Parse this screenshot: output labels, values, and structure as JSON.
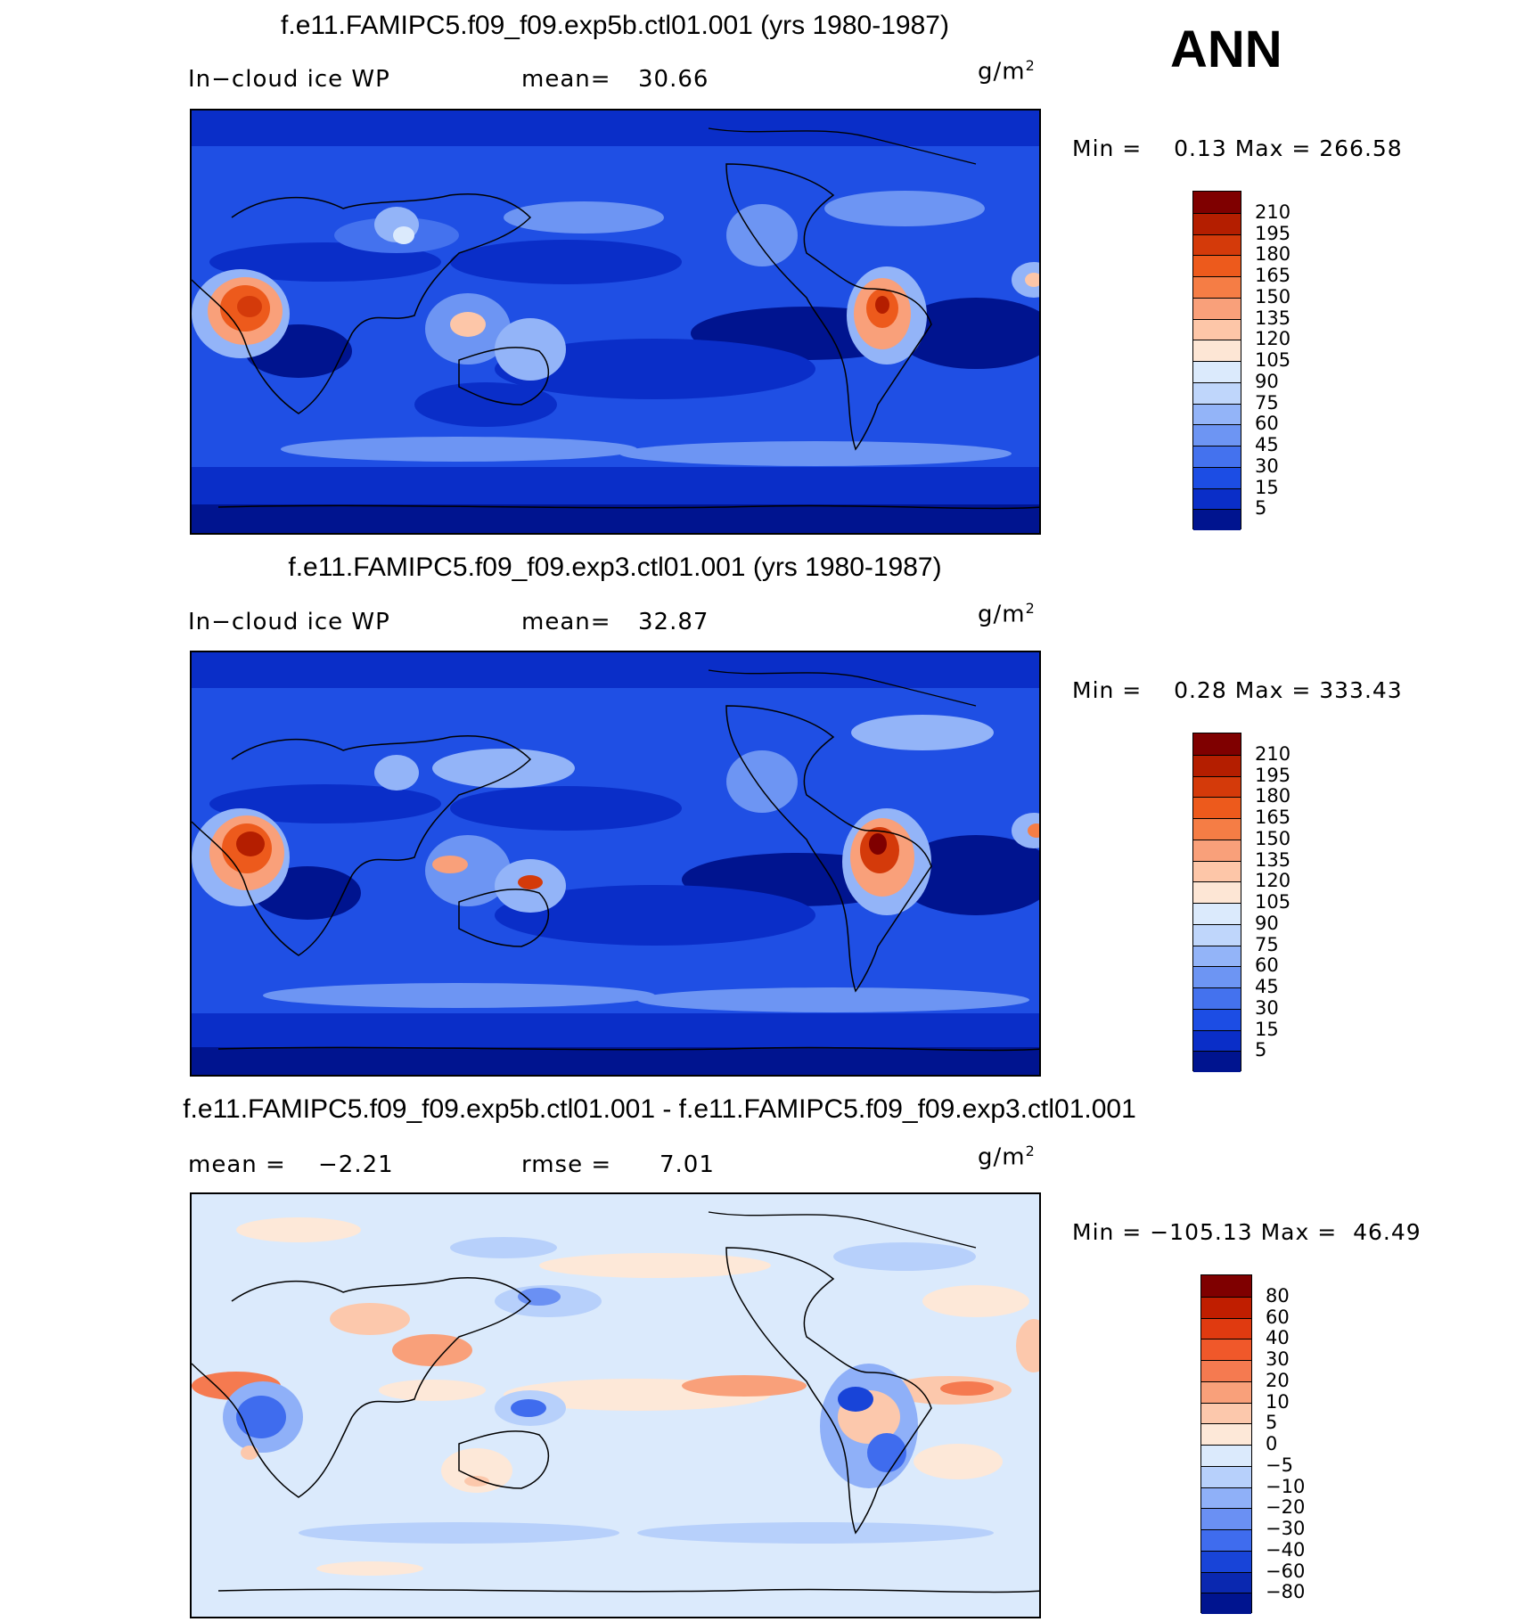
{
  "season": "ANN",
  "units_html_unit": "g/m",
  "units_sup": "2",
  "panels": [
    {
      "title": "f.e11.FAMIPC5.f09_f09.exp5b.ctl01.001 (yrs 1980-1987)",
      "left_label": "In−cloud ice WP",
      "mid_label": "mean=",
      "mid_value": "30.66",
      "min_label": "Min =",
      "min_value": "0.13",
      "max_label": "Max =",
      "max_value": "266.58",
      "colorbar": {
        "labels": [
          "210",
          "195",
          "180",
          "165",
          "150",
          "135",
          "120",
          "105",
          "90",
          "75",
          "60",
          "45",
          "30",
          "15",
          "5"
        ],
        "colors": [
          "#7f0000",
          "#b41e00",
          "#d43a0a",
          "#ed5a1c",
          "#f57d45",
          "#f9a07a",
          "#fdc6a8",
          "#fde6d5",
          "#dbeafc",
          "#bfd6fb",
          "#93b4f8",
          "#6d95f3",
          "#4472ee",
          "#1c4de4",
          "#0a2ec8",
          "#00148f"
        ]
      }
    },
    {
      "title": "f.e11.FAMIPC5.f09_f09.exp3.ctl01.001 (yrs 1980-1987)",
      "left_label": "In−cloud ice WP",
      "mid_label": "mean=",
      "mid_value": "32.87",
      "min_label": "Min =",
      "min_value": "0.28",
      "max_label": "Max =",
      "max_value": "333.43",
      "colorbar": {
        "labels": [
          "210",
          "195",
          "180",
          "165",
          "150",
          "135",
          "120",
          "105",
          "90",
          "75",
          "60",
          "45",
          "30",
          "15",
          "5"
        ],
        "colors": [
          "#7f0000",
          "#b41e00",
          "#d43a0a",
          "#ed5a1c",
          "#f57d45",
          "#f9a07a",
          "#fdc6a8",
          "#fde6d5",
          "#dbeafc",
          "#bfd6fb",
          "#93b4f8",
          "#6d95f3",
          "#4472ee",
          "#1c4de4",
          "#0a2ec8",
          "#00148f"
        ]
      }
    },
    {
      "title": "f.e11.FAMIPC5.f09_f09.exp5b.ctl01.001 - f.e11.FAMIPC5.f09_f09.exp3.ctl01.001",
      "left_label": "mean =",
      "left_value": "−2.21",
      "mid_label": "rmse =",
      "mid_value": "7.01",
      "min_label": "Min =",
      "min_value": "−105.13",
      "max_label": "Max =",
      "max_value": "46.49",
      "colorbar": {
        "labels": [
          "80",
          "60",
          "40",
          "30",
          "20",
          "10",
          "5",
          "0",
          "−5",
          "−10",
          "−20",
          "−30",
          "−40",
          "−60",
          "−80"
        ],
        "colors": [
          "#7f0000",
          "#c01e00",
          "#e03a10",
          "#f0582a",
          "#f57a50",
          "#f9a07a",
          "#fcc8ac",
          "#fde8d8",
          "#dbeafc",
          "#b7d0fb",
          "#8fb0f8",
          "#6a90f3",
          "#3f6cee",
          "#1844d8",
          "#0a28b0",
          "#00148f"
        ]
      }
    }
  ]
}
